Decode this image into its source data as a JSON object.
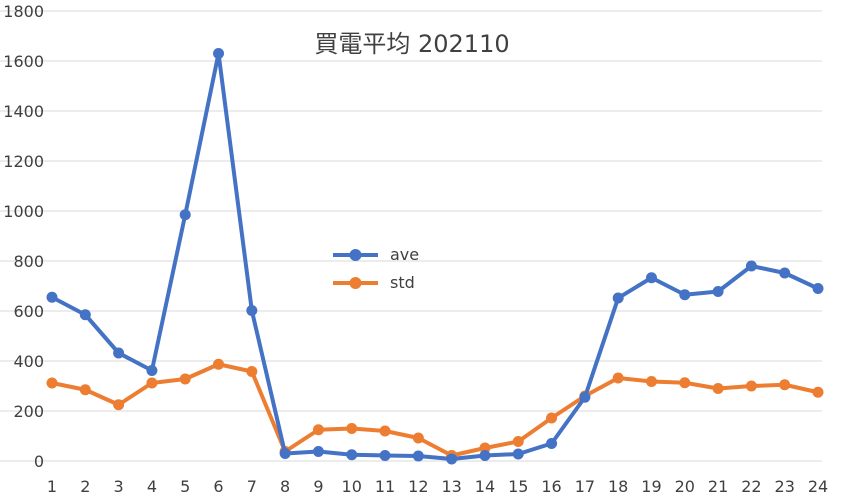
{
  "chart_data": {
    "type": "line",
    "title": "買電平均 202110",
    "xlabel": "",
    "ylabel": "",
    "categories": [
      "1",
      "2",
      "3",
      "4",
      "5",
      "6",
      "7",
      "8",
      "9",
      "10",
      "11",
      "12",
      "13",
      "14",
      "15",
      "16",
      "17",
      "18",
      "19",
      "20",
      "21",
      "22",
      "23",
      "24"
    ],
    "ylim": [
      0,
      1800
    ],
    "yticks": [
      0,
      200,
      400,
      600,
      800,
      1000,
      1200,
      1400,
      1600,
      1800
    ],
    "grid": true,
    "legend_position": "center",
    "series": [
      {
        "name": "ave",
        "color": "#4472C4",
        "values": [
          655,
          585,
          432,
          362,
          985,
          1630,
          602,
          30,
          38,
          25,
          22,
          20,
          8,
          22,
          28,
          70,
          255,
          652,
          733,
          665,
          678,
          780,
          752,
          690
        ]
      },
      {
        "name": "std",
        "color": "#ED7D31",
        "values": [
          312,
          285,
          225,
          312,
          328,
          387,
          358,
          38,
          125,
          130,
          120,
          92,
          22,
          52,
          78,
          172,
          260,
          332,
          318,
          313,
          290,
          300,
          305,
          275
        ]
      }
    ]
  }
}
